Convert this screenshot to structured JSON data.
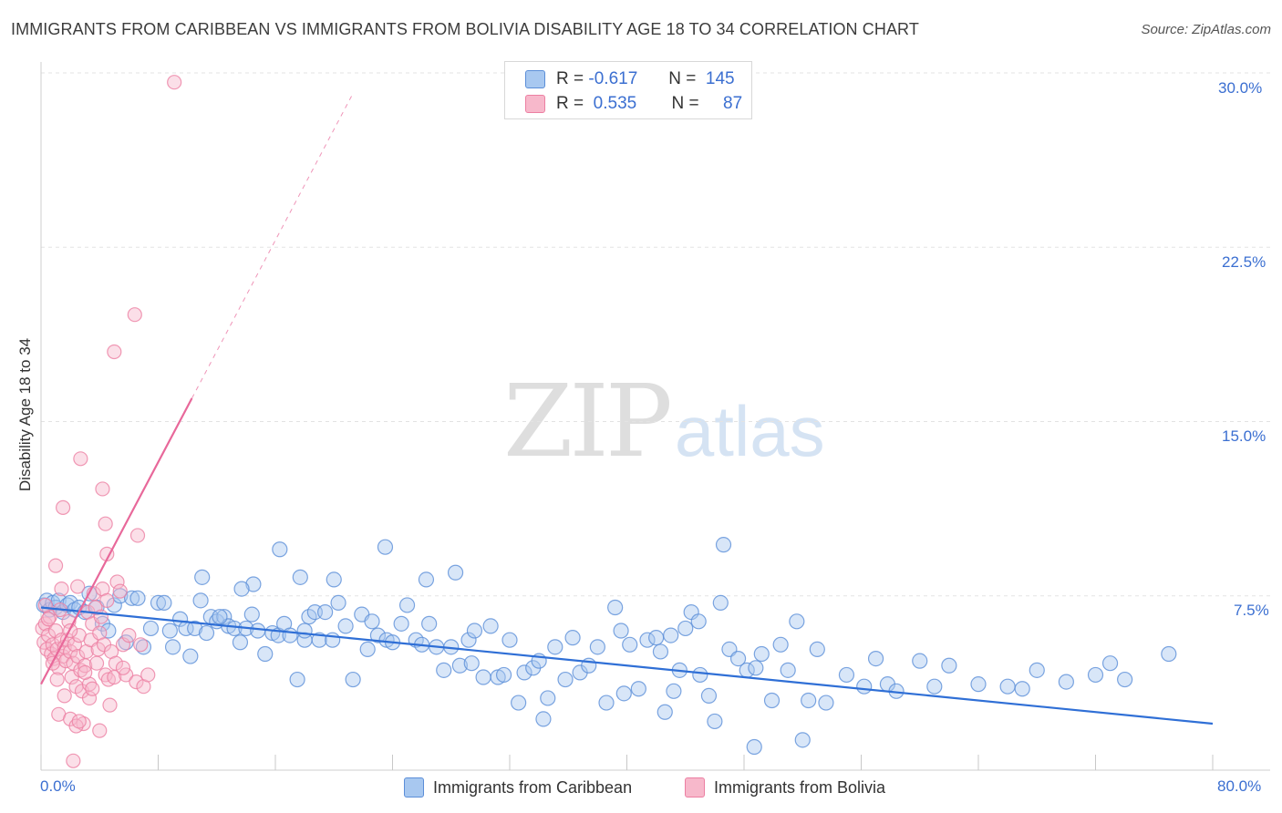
{
  "title": "IMMIGRANTS FROM CARIBBEAN VS IMMIGRANTS FROM BOLIVIA DISABILITY AGE 18 TO 34 CORRELATION CHART",
  "source": "Source: ZipAtlas.com",
  "watermark": {
    "zip": "ZIP",
    "atlas": "atlas"
  },
  "colors": {
    "blue_fill": "#a8c8f0",
    "blue_stroke": "#5b8ed8",
    "blue_line": "#2f6fd6",
    "pink_fill": "#f7b8cb",
    "pink_stroke": "#ec7fa2",
    "pink_line": "#e8689a",
    "grid": "#e3e3e3",
    "tick_text": "#3b6fd1"
  },
  "legend": {
    "rows": [
      {
        "r_label": "R =",
        "r_value": "-0.617",
        "n_label": "N =",
        "n_value": "145",
        "color": "#a8c8f0"
      },
      {
        "r_label": "R =",
        "r_value": "0.535",
        "n_label": "N =",
        "n_value": "87",
        "color": "#f7b8cb"
      }
    ]
  },
  "chart_data": {
    "type": "scatter",
    "title": "IMMIGRANTS FROM CARIBBEAN VS IMMIGRANTS FROM BOLIVIA DISABILITY AGE 18 TO 34 CORRELATION CHART",
    "xlabel": "",
    "ylabel": "Disability Age 18 to 34",
    "xlim": [
      0,
      80
    ],
    "ylim": [
      0,
      30
    ],
    "x_tick_labels": [
      "0.0%",
      "80.0%"
    ],
    "y_ticks": [
      7.5,
      15.0,
      22.5,
      30.0
    ],
    "y_tick_labels": [
      "7.5%",
      "15.0%",
      "22.5%",
      "30.0%"
    ],
    "series": [
      {
        "name": "Immigrants from Caribbean",
        "color": "#a8c8f0",
        "trend": {
          "x": [
            0,
            80
          ],
          "y": [
            7.0,
            2.0
          ],
          "dashed_extension": false
        },
        "points": [
          [
            0.2,
            7.1
          ],
          [
            0.4,
            7.3
          ],
          [
            0.6,
            6.9
          ],
          [
            0.8,
            7.2
          ],
          [
            1.0,
            7.0
          ],
          [
            1.2,
            7.3
          ],
          [
            1.5,
            6.8
          ],
          [
            1.8,
            7.1
          ],
          [
            2.0,
            7.2
          ],
          [
            2.3,
            6.9
          ],
          [
            2.6,
            7.0
          ],
          [
            3.0,
            6.8
          ],
          [
            3.3,
            7.6
          ],
          [
            3.8,
            7.0
          ],
          [
            4.2,
            6.3
          ],
          [
            4.6,
            6.0
          ],
          [
            5.0,
            7.1
          ],
          [
            5.4,
            7.5
          ],
          [
            5.8,
            5.5
          ],
          [
            6.2,
            7.4
          ],
          [
            6.6,
            7.4
          ],
          [
            7.0,
            5.3
          ],
          [
            7.5,
            6.1
          ],
          [
            8.0,
            7.2
          ],
          [
            8.4,
            7.2
          ],
          [
            8.8,
            6.0
          ],
          [
            9.0,
            5.3
          ],
          [
            9.5,
            6.5
          ],
          [
            9.9,
            6.1
          ],
          [
            10.2,
            4.9
          ],
          [
            10.5,
            6.1
          ],
          [
            10.9,
            7.3
          ],
          [
            11.3,
            5.9
          ],
          [
            11.6,
            6.6
          ],
          [
            12.0,
            6.4
          ],
          [
            12.5,
            6.6
          ],
          [
            12.8,
            6.2
          ],
          [
            13.2,
            6.1
          ],
          [
            13.6,
            5.5
          ],
          [
            14.0,
            6.1
          ],
          [
            14.4,
            6.7
          ],
          [
            14.8,
            6.0
          ],
          [
            15.3,
            5.0
          ],
          [
            15.8,
            5.9
          ],
          [
            16.2,
            5.8
          ],
          [
            16.6,
            6.3
          ],
          [
            17.0,
            5.8
          ],
          [
            17.5,
            3.9
          ],
          [
            18.0,
            5.6
          ],
          [
            18.3,
            6.6
          ],
          [
            18.7,
            6.8
          ],
          [
            19.0,
            5.6
          ],
          [
            19.4,
            6.8
          ],
          [
            19.9,
            5.6
          ],
          [
            20.3,
            7.2
          ],
          [
            20.8,
            6.2
          ],
          [
            21.3,
            3.9
          ],
          [
            21.9,
            6.7
          ],
          [
            22.3,
            5.2
          ],
          [
            22.6,
            6.4
          ],
          [
            23.0,
            5.8
          ],
          [
            23.6,
            5.6
          ],
          [
            24.0,
            5.5
          ],
          [
            24.6,
            6.3
          ],
          [
            25.0,
            7.1
          ],
          [
            25.6,
            5.6
          ],
          [
            26.0,
            5.4
          ],
          [
            26.5,
            6.3
          ],
          [
            27.0,
            5.3
          ],
          [
            27.5,
            4.3
          ],
          [
            28.0,
            5.3
          ],
          [
            28.6,
            4.5
          ],
          [
            29.2,
            5.6
          ],
          [
            29.6,
            6.0
          ],
          [
            30.2,
            4.0
          ],
          [
            30.7,
            6.2
          ],
          [
            31.2,
            4.0
          ],
          [
            31.6,
            4.1
          ],
          [
            32.0,
            5.6
          ],
          [
            32.6,
            2.9
          ],
          [
            33.0,
            4.2
          ],
          [
            33.6,
            4.4
          ],
          [
            34.0,
            4.7
          ],
          [
            34.6,
            3.1
          ],
          [
            35.1,
            5.3
          ],
          [
            35.8,
            3.9
          ],
          [
            36.3,
            5.7
          ],
          [
            36.8,
            4.2
          ],
          [
            37.4,
            4.5
          ],
          [
            38.0,
            5.3
          ],
          [
            38.6,
            2.9
          ],
          [
            39.2,
            7.0
          ],
          [
            39.6,
            6.0
          ],
          [
            40.2,
            5.4
          ],
          [
            40.8,
            3.5
          ],
          [
            41.4,
            5.6
          ],
          [
            42.0,
            5.7
          ],
          [
            42.6,
            2.5
          ],
          [
            43.2,
            3.4
          ],
          [
            43.6,
            4.3
          ],
          [
            44.0,
            6.1
          ],
          [
            44.4,
            6.8
          ],
          [
            45.0,
            4.1
          ],
          [
            45.6,
            3.2
          ],
          [
            46.0,
            2.1
          ],
          [
            46.4,
            7.2
          ],
          [
            47.0,
            5.2
          ],
          [
            47.6,
            4.8
          ],
          [
            48.2,
            4.3
          ],
          [
            48.7,
            1.0
          ],
          [
            48.8,
            4.4
          ],
          [
            49.2,
            5.0
          ],
          [
            49.9,
            3.0
          ],
          [
            50.5,
            5.4
          ],
          [
            51.0,
            4.3
          ],
          [
            51.6,
            6.4
          ],
          [
            52.0,
            1.3
          ],
          [
            52.4,
            3.0
          ],
          [
            53.0,
            5.2
          ],
          [
            53.6,
            2.9
          ],
          [
            55.0,
            4.1
          ],
          [
            56.2,
            3.6
          ],
          [
            57.0,
            4.8
          ],
          [
            57.8,
            3.7
          ],
          [
            58.4,
            3.4
          ],
          [
            60.0,
            4.7
          ],
          [
            61.0,
            3.6
          ],
          [
            62.0,
            4.5
          ],
          [
            64.0,
            3.7
          ],
          [
            66.0,
            3.6
          ],
          [
            67.0,
            3.5
          ],
          [
            68.0,
            4.3
          ],
          [
            70.0,
            3.8
          ],
          [
            72.0,
            4.1
          ],
          [
            73.0,
            4.6
          ],
          [
            74.0,
            3.9
          ],
          [
            77.0,
            5.0
          ],
          [
            46.6,
            9.7
          ],
          [
            28.3,
            8.5
          ],
          [
            23.5,
            9.6
          ],
          [
            17.7,
            8.3
          ],
          [
            16.3,
            9.5
          ],
          [
            14.5,
            8.0
          ],
          [
            13.7,
            7.8
          ],
          [
            11.0,
            8.3
          ],
          [
            29.4,
            4.6
          ],
          [
            34.3,
            2.2
          ],
          [
            39.8,
            3.3
          ],
          [
            42.3,
            5.1
          ],
          [
            44.9,
            6.4
          ],
          [
            26.3,
            8.2
          ],
          [
            20.0,
            8.2
          ],
          [
            12.2,
            6.6
          ],
          [
            18.0,
            6.0
          ],
          [
            43.0,
            5.8
          ]
        ]
      },
      {
        "name": "Immigrants from Bolivia",
        "color": "#f7b8cb",
        "trend": {
          "x": [
            0,
            10.3,
            21.2
          ],
          "y": [
            3.7,
            16.0,
            29.0
          ],
          "dashed_extension": true
        },
        "points": [
          [
            0.1,
            6.1
          ],
          [
            0.2,
            5.5
          ],
          [
            0.3,
            6.3
          ],
          [
            0.4,
            5.2
          ],
          [
            0.5,
            5.8
          ],
          [
            0.6,
            6.6
          ],
          [
            0.7,
            5.0
          ],
          [
            0.8,
            5.4
          ],
          [
            0.9,
            4.8
          ],
          [
            1.0,
            6.0
          ],
          [
            1.1,
            5.2
          ],
          [
            1.2,
            4.4
          ],
          [
            1.3,
            6.9
          ],
          [
            1.4,
            5.6
          ],
          [
            1.5,
            4.9
          ],
          [
            1.6,
            5.3
          ],
          [
            1.7,
            4.7
          ],
          [
            1.8,
            5.6
          ],
          [
            1.9,
            6.4
          ],
          [
            2.0,
            5.1
          ],
          [
            2.1,
            4.0
          ],
          [
            2.2,
            4.6
          ],
          [
            2.3,
            5.4
          ],
          [
            2.4,
            3.6
          ],
          [
            2.5,
            4.9
          ],
          [
            2.6,
            5.8
          ],
          [
            2.7,
            4.3
          ],
          [
            2.8,
            3.4
          ],
          [
            2.9,
            2.0
          ],
          [
            3.0,
            4.5
          ],
          [
            3.1,
            5.1
          ],
          [
            3.2,
            6.8
          ],
          [
            3.3,
            3.7
          ],
          [
            3.4,
            5.6
          ],
          [
            3.5,
            6.3
          ],
          [
            3.6,
            7.6
          ],
          [
            3.7,
            7.0
          ],
          [
            3.8,
            4.6
          ],
          [
            3.9,
            5.2
          ],
          [
            4.0,
            5.9
          ],
          [
            4.1,
            6.6
          ],
          [
            4.2,
            7.8
          ],
          [
            4.3,
            5.4
          ],
          [
            4.4,
            4.1
          ],
          [
            4.5,
            7.3
          ],
          [
            4.6,
            3.9
          ],
          [
            4.7,
            2.8
          ],
          [
            4.8,
            5.1
          ],
          [
            5.0,
            4.0
          ],
          [
            5.2,
            8.1
          ],
          [
            5.4,
            7.7
          ],
          [
            5.6,
            5.4
          ],
          [
            5.8,
            4.1
          ],
          [
            6.0,
            5.8
          ],
          [
            6.5,
            3.8
          ],
          [
            6.8,
            5.4
          ],
          [
            7.0,
            3.6
          ],
          [
            7.3,
            4.1
          ],
          [
            1.0,
            8.8
          ],
          [
            1.5,
            11.3
          ],
          [
            2.7,
            13.4
          ],
          [
            4.2,
            12.1
          ],
          [
            4.5,
            9.3
          ],
          [
            4.4,
            10.6
          ],
          [
            6.6,
            10.1
          ],
          [
            5.0,
            18.0
          ],
          [
            6.4,
            19.6
          ],
          [
            9.1,
            29.6
          ],
          [
            1.2,
            2.4
          ],
          [
            2.0,
            2.2
          ],
          [
            3.3,
            3.1
          ],
          [
            4.0,
            1.7
          ],
          [
            2.2,
            0.4
          ],
          [
            2.4,
            1.9
          ],
          [
            2.6,
            2.1
          ],
          [
            5.1,
            4.6
          ],
          [
            5.6,
            4.4
          ],
          [
            0.3,
            7.1
          ],
          [
            0.5,
            6.5
          ],
          [
            0.8,
            4.6
          ],
          [
            1.1,
            3.9
          ],
          [
            1.4,
            7.8
          ],
          [
            1.6,
            3.2
          ],
          [
            2.0,
            6.0
          ],
          [
            2.5,
            7.9
          ],
          [
            3.0,
            4.2
          ],
          [
            3.5,
            3.5
          ]
        ]
      }
    ]
  },
  "bottom_legend": [
    {
      "label": "Immigrants from Caribbean",
      "color": "#a8c8f0"
    },
    {
      "label": "Immigrants from Bolivia",
      "color": "#f7b8cb"
    }
  ]
}
